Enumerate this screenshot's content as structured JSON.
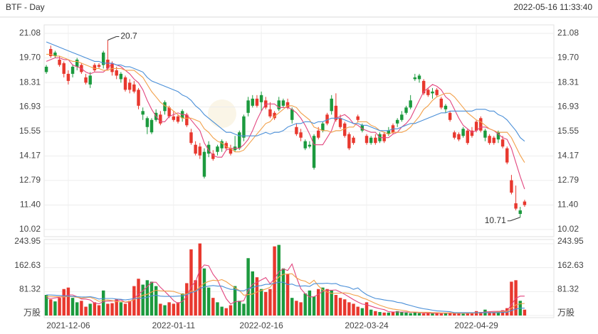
{
  "chart_data": {
    "type": "candlestick",
    "title": "BTF - Day",
    "timestamp": "2022-05-16 11:33:40",
    "categories": [
      null,
      null,
      null,
      null,
      null,
      "2021-12-06",
      null,
      null,
      null,
      null,
      null,
      null,
      null,
      null,
      null,
      null,
      null,
      null,
      null,
      null,
      null,
      null,
      null,
      null,
      null,
      null,
      null,
      null,
      null,
      "2022-01-11",
      null,
      null,
      null,
      null,
      null,
      null,
      null,
      null,
      null,
      null,
      null,
      null,
      null,
      null,
      null,
      null,
      null,
      null,
      null,
      "2022-02-16",
      null,
      null,
      null,
      null,
      null,
      null,
      null,
      null,
      null,
      null,
      null,
      null,
      null,
      null,
      null,
      null,
      null,
      null,
      null,
      null,
      null,
      null,
      null,
      "2022-03-24",
      null,
      null,
      null,
      null,
      null,
      null,
      null,
      null,
      null,
      null,
      null,
      null,
      null,
      null,
      null,
      null,
      null,
      null,
      null,
      null,
      null,
      null,
      null,
      null,
      "2022-04-29",
      null,
      null,
      null,
      null,
      null,
      null,
      null,
      null,
      null,
      null,
      null
    ],
    "open": [
      19.2,
      19.8,
      20.0,
      19.3,
      18.8,
      18.4,
      19.2,
      19.6,
      18.9,
      18.3,
      18.7,
      19.0,
      19.2,
      20.0,
      19.1,
      18.9,
      18.7,
      18.8,
      17.9,
      17.9,
      17.8,
      17.0,
      16.7,
      16.3,
      16.2,
      16.6,
      16.0,
      17.2,
      16.4,
      16.2,
      16.1,
      16.7,
      15.9,
      14.9,
      14.3,
      14.2,
      14.4,
      14.8,
      14.0,
      14.7,
      15.0,
      14.6,
      14.3,
      14.7,
      15.5,
      16.4,
      17.3,
      17.4,
      17.0,
      17.6,
      16.9,
      16.4,
      16.3,
      17.3,
      17.3,
      16.9,
      16.8,
      15.4,
      15.2,
      15.0,
      14.8,
      15.3,
      15.2,
      16.0,
      16.0,
      17.4,
      16.2,
      15.8,
      15.3,
      14.6,
      14.9,
      16.2,
      15.9,
      14.9,
      15.2,
      14.9,
      15.4,
      15.0,
      15.6,
      15.5,
      16.2,
      16.5,
      16.9,
      17.3,
      18.6,
      18.7,
      17.7,
      17.6,
      17.8,
      17.6,
      16.9,
      17.0,
      16.2,
      15.2,
      15.1,
      15.7,
      14.9,
      15.3,
      15.6,
      15.6,
      15.6,
      14.9,
      14.9,
      15.5,
      14.7,
      13.8,
      12.1,
      11.2,
      11.1,
      11.4
    ],
    "high": [
      19.3,
      20.39,
      20.1,
      19.8,
      19.5,
      19.0,
      19.3,
      19.7,
      19.4,
      18.8,
      18.9,
      19.4,
      19.4,
      20.1,
      20.7,
      19.5,
      19.2,
      18.9,
      18.7,
      18.5,
      18.4,
      18.0,
      16.9,
      16.4,
      16.3,
      16.8,
      16.7,
      17.3,
      17.0,
      16.7,
      16.5,
      16.8,
      16.6,
      15.7,
      15.0,
      14.9,
      14.6,
      15.0,
      14.5,
      14.8,
      15.1,
      15.0,
      14.8,
      15.3,
      15.6,
      16.5,
      17.5,
      17.6,
      17.6,
      17.8,
      17.5,
      17.2,
      16.7,
      17.5,
      17.4,
      17.4,
      16.9,
      16.0,
      15.7,
      15.1,
      15.0,
      15.4,
      15.8,
      16.1,
      16.6,
      17.6,
      17.7,
      16.5,
      16.1,
      15.5,
      15.3,
      16.5,
      16.0,
      15.4,
      15.3,
      15.4,
      15.5,
      15.5,
      15.8,
      16.0,
      16.3,
      16.7,
      17.0,
      17.6,
      18.8,
      18.8,
      18.5,
      18.0,
      18.0,
      18.0,
      17.5,
      17.1,
      16.7,
      15.6,
      15.5,
      15.8,
      15.7,
      15.8,
      16.2,
      16.4,
      15.7,
      15.4,
      15.3,
      15.6,
      15.3,
      14.7,
      13.1,
      12.5,
      11.3,
      11.7
    ],
    "low": [
      18.8,
      19.7,
      19.7,
      19.2,
      18.6,
      18.2,
      18.6,
      19.0,
      18.8,
      18.2,
      18.0,
      18.9,
      19.1,
      19.1,
      19.0,
      18.7,
      18.5,
      18.3,
      17.8,
      17.7,
      17.7,
      16.8,
      16.2,
      15.4,
      15.4,
      16.1,
      15.9,
      16.5,
      16.3,
      16.1,
      16.0,
      16.1,
      15.8,
      14.8,
      14.2,
      14.0,
      12.9,
      14.1,
      13.9,
      14.2,
      14.4,
      14.5,
      14.2,
      14.4,
      14.5,
      15.0,
      16.4,
      16.9,
      16.9,
      16.7,
      16.8,
      16.3,
      16.2,
      16.7,
      16.9,
      16.8,
      16.0,
      15.3,
      15.0,
      14.5,
      14.6,
      13.4,
      15.1,
      15.5,
      15.9,
      16.5,
      16.1,
      15.7,
      15.2,
      14.5,
      14.8,
      16.1,
      15.5,
      14.8,
      14.8,
      14.8,
      14.9,
      14.9,
      15.3,
      15.4,
      15.8,
      16.1,
      16.5,
      16.8,
      18.4,
      18.3,
      17.6,
      17.5,
      17.4,
      17.5,
      16.8,
      16.6,
      16.1,
      15.1,
      15.0,
      15.2,
      14.8,
      15.2,
      15.5,
      15.5,
      15.0,
      14.8,
      14.8,
      14.9,
      14.6,
      13.7,
      12.0,
      11.1,
      10.71,
      11.3
    ],
    "close": [
      18.9,
      20.2,
      19.8,
      19.6,
      19.4,
      18.8,
      18.8,
      19.2,
      19.3,
      18.6,
      18.2,
      19.3,
      19.3,
      19.3,
      19.6,
      19.4,
      19.0,
      18.5,
      18.6,
      18.3,
      18.2,
      17.9,
      16.5,
      15.8,
      15.5,
      16.2,
      16.5,
      16.7,
      16.9,
      16.4,
      16.4,
      16.3,
      16.5,
      15.5,
      14.8,
      14.7,
      13.0,
      14.3,
      14.3,
      14.4,
      14.6,
      14.9,
      14.6,
      14.5,
      14.6,
      15.2,
      16.6,
      17.0,
      17.4,
      17.2,
      17.3,
      16.8,
      16.6,
      16.8,
      17.0,
      17.2,
      16.2,
      15.8,
      15.5,
      14.6,
      14.7,
      13.5,
      15.6,
      15.6,
      16.5,
      16.7,
      17.0,
      16.3,
      16.0,
      15.4,
      15.2,
      16.4,
      15.6,
      15.3,
      14.9,
      15.2,
      15.0,
      15.4,
      15.4,
      15.9,
      16.0,
      16.2,
      16.6,
      16.9,
      18.5,
      18.5,
      18.4,
      17.9,
      17.7,
      17.9,
      17.4,
      16.8,
      16.6,
      15.5,
      15.4,
      15.3,
      15.6,
      15.6,
      16.1,
      16.3,
      15.2,
      15.3,
      15.2,
      15.1,
      15.1,
      14.6,
      12.8,
      11.5,
      10.9,
      11.6
    ],
    "up_color": "#e8382e",
    "down_color": "#1c9a3e",
    "ylim": [
      10.02,
      21.08
    ],
    "yticks": [
      21.08,
      {
        "value": 19.7,
        "label": "19.70"
      },
      18.31,
      16.93,
      15.55,
      14.17,
      12.79,
      {
        "value": 11.4,
        "label": "11.40"
      },
      10.02
    ],
    "grid": true,
    "ma_lines": [
      {
        "color": "#e2457f",
        "values": [
          19.5,
          19.6,
          19.7,
          19.7,
          19.6,
          19.6,
          19.3,
          19.2,
          19.1,
          18.9,
          18.8,
          18.9,
          18.9,
          18.9,
          19.1,
          19.4,
          19.3,
          19.2,
          19.0,
          18.8,
          18.5,
          18.3,
          17.9,
          17.3,
          16.8,
          16.4,
          16.1,
          16.1,
          16.4,
          16.5,
          16.6,
          16.5,
          16.5,
          16.2,
          15.9,
          15.6,
          14.9,
          14.5,
          14.2,
          14.1,
          14.1,
          14.5,
          14.6,
          14.6,
          14.6,
          14.8,
          15.1,
          15.6,
          16.2,
          16.7,
          17.1,
          17.1,
          17.1,
          16.9,
          16.9,
          16.9,
          16.8,
          16.6,
          16.3,
          15.9,
          15.4,
          14.8,
          14.8,
          14.8,
          15.2,
          15.6,
          16.3,
          16.4,
          16.5,
          16.3,
          16.0,
          15.9,
          15.7,
          15.6,
          15.5,
          15.5,
          15.2,
          15.2,
          15.2,
          15.4,
          15.5,
          15.8,
          16.0,
          16.3,
          16.8,
          17.3,
          17.8,
          18.0,
          18.2,
          18.1,
          17.9,
          17.5,
          17.3,
          16.8,
          16.3,
          15.9,
          15.7,
          15.5,
          15.6,
          15.8,
          15.8,
          15.7,
          15.6,
          15.4,
          15.2,
          15.1,
          14.6,
          13.8,
          13.0,
          12.3
        ]
      },
      {
        "color": "#f2a04a",
        "values": [
          19.9,
          19.9,
          19.8,
          19.8,
          19.7,
          19.6,
          19.5,
          19.5,
          19.4,
          19.3,
          19.2,
          19.1,
          19.1,
          19.0,
          19.0,
          19.1,
          19.1,
          19.1,
          19.0,
          19.0,
          19.0,
          18.8,
          18.6,
          18.2,
          17.8,
          17.5,
          17.2,
          17.0,
          16.9,
          16.7,
          16.5,
          16.3,
          16.3,
          16.3,
          16.2,
          16.1,
          15.7,
          15.5,
          15.2,
          15.0,
          14.9,
          14.7,
          14.6,
          14.4,
          14.4,
          14.5,
          14.8,
          15.1,
          15.4,
          15.7,
          16.0,
          16.1,
          16.4,
          16.6,
          16.8,
          17.0,
          17.0,
          16.9,
          16.6,
          16.4,
          16.2,
          15.8,
          15.7,
          15.6,
          15.6,
          15.5,
          15.6,
          15.6,
          15.7,
          15.8,
          15.8,
          16.1,
          16.1,
          16.1,
          15.9,
          15.8,
          15.6,
          15.5,
          15.4,
          15.5,
          15.5,
          15.5,
          15.6,
          15.8,
          16.1,
          16.4,
          16.8,
          17.0,
          17.3,
          17.5,
          17.6,
          17.7,
          17.7,
          17.5,
          17.2,
          16.9,
          16.6,
          16.4,
          16.2,
          16.1,
          15.9,
          15.7,
          15.6,
          15.5,
          15.5,
          15.5,
          15.2,
          14.7,
          14.2,
          13.8
        ]
      },
      {
        "color": "#4a8fd8",
        "values": [
          20.6,
          20.5,
          20.4,
          20.3,
          20.2,
          20.1,
          20.0,
          19.9,
          19.8,
          19.7,
          19.6,
          19.5,
          19.5,
          19.4,
          19.4,
          19.4,
          19.3,
          19.3,
          19.2,
          19.2,
          19.1,
          19.0,
          18.9,
          18.6,
          18.4,
          18.3,
          18.2,
          18.1,
          18.0,
          17.9,
          17.8,
          17.6,
          17.5,
          17.3,
          17.0,
          16.8,
          16.5,
          16.3,
          16.1,
          15.9,
          15.7,
          15.5,
          15.5,
          15.4,
          15.3,
          15.3,
          15.3,
          15.3,
          15.3,
          15.4,
          15.5,
          15.4,
          15.5,
          15.5,
          15.6,
          15.8,
          15.9,
          16.0,
          16.0,
          16.1,
          16.1,
          16.0,
          16.1,
          16.1,
          16.2,
          16.3,
          16.3,
          16.3,
          16.2,
          16.1,
          16.0,
          16.0,
          15.9,
          15.9,
          15.8,
          15.7,
          15.6,
          15.6,
          15.6,
          15.7,
          15.7,
          15.8,
          15.9,
          16.0,
          16.0,
          16.1,
          16.2,
          16.3,
          16.4,
          16.5,
          16.6,
          16.6,
          16.7,
          16.7,
          16.7,
          16.7,
          16.7,
          16.7,
          16.8,
          16.8,
          16.8,
          16.7,
          16.7,
          16.5,
          16.4,
          16.2,
          15.9,
          15.6,
          15.2,
          15.0
        ]
      }
    ],
    "volume": {
      "values": [
        70,
        55,
        48,
        60,
        90,
        95,
        60,
        45,
        50,
        30,
        40,
        45,
        35,
        85,
        40,
        42,
        55,
        45,
        40,
        50,
        100,
        125,
        105,
        120,
        115,
        100,
        40,
        35,
        45,
        40,
        45,
        75,
        110,
        225,
        120,
        245,
        160,
        95,
        60,
        45,
        30,
        25,
        35,
        100,
        50,
        40,
        195,
        150,
        130,
        90,
        80,
        90,
        235,
        240,
        160,
        140,
        60,
        50,
        45,
        75,
        85,
        65,
        90,
        95,
        90,
        85,
        70,
        60,
        55,
        45,
        40,
        30,
        25,
        45,
        20,
        15,
        12,
        10,
        10,
        12,
        15,
        12,
        10,
        8,
        10,
        8,
        7,
        8,
        9,
        8,
        7,
        8,
        10,
        8,
        7,
        6,
        8,
        10,
        15,
        12,
        20,
        10,
        12,
        15,
        18,
        25,
        115,
        120,
        50,
        20
      ],
      "ylim": [
        0,
        243.95
      ],
      "yticks": [
        {
          "value": 0,
          "label": "万股"
        },
        81.32,
        162.63,
        243.95
      ],
      "ma_lines": [
        {
          "color": "#e2457f",
          "values": [
            60,
            58,
            60,
            62,
            65,
            70,
            70,
            64,
            56,
            56,
            53,
            42,
            40,
            47,
            49,
            49,
            51,
            53,
            45,
            46,
            58,
            72,
            84,
            98,
            113,
            113,
            96,
            82,
            67,
            51,
            41,
            48,
            63,
            99,
            115,
            155,
            172,
            169,
            140,
            121,
            88,
            57,
            39,
            47,
            48,
            50,
            84,
            106,
            113,
            121,
            129,
            108,
            125,
            149,
            159,
            153,
            175,
            130,
            91,
            74,
            63,
            64,
            72,
            82,
            86,
            86,
            87,
            80,
            72,
            63,
            54,
            46,
            39,
            37,
            32,
            27,
            23,
            20,
            13,
            12,
            12,
            12,
            12,
            11,
            11,
            10,
            9,
            9,
            8,
            8,
            8,
            8,
            8,
            8,
            8,
            8,
            8,
            8,
            9,
            10,
            12,
            13,
            14,
            14,
            15,
            16,
            37,
            59,
            66,
            66
          ]
        },
        {
          "color": "#f2a04a",
          "values": [
            65,
            65,
            64,
            64,
            63,
            65,
            64,
            62,
            59,
            61,
            62,
            56,
            48,
            52,
            53,
            51,
            47,
            47,
            46,
            48,
            54,
            62,
            69,
            72,
            80,
            86,
            84,
            83,
            83,
            82,
            77,
            72,
            73,
            83,
            83,
            98,
            110,
            116,
            120,
            118,
            122,
            115,
            104,
            94,
            85,
            69,
            71,
            73,
            80,
            85,
            90,
            96,
            116,
            131,
            140,
            141,
            142,
            128,
            120,
            117,
            108,
            120,
            101,
            87,
            80,
            75,
            76,
            76,
            77,
            75,
            70,
            67,
            60,
            55,
            48,
            41,
            35,
            30,
            25,
            22,
            20,
            18,
            16,
            12,
            12,
            11,
            11,
            11,
            10,
            10,
            9,
            9,
            9,
            8,
            8,
            8,
            8,
            8,
            9,
            9,
            10,
            11,
            11,
            12,
            13,
            14,
            25,
            36,
            40,
            41
          ]
        },
        {
          "color": "#4a8fd8",
          "values": [
            70,
            70,
            69,
            68,
            67,
            66,
            65,
            64,
            63,
            63,
            64,
            61,
            56,
            58,
            58,
            58,
            56,
            55,
            53,
            55,
            58,
            59,
            59,
            62,
            67,
            69,
            66,
            65,
            65,
            65,
            66,
            67,
            71,
            78,
            82,
            92,
            97,
            100,
            102,
            100,
            100,
            94,
            89,
            89,
            84,
            84,
            91,
            95,
            100,
            102,
            106,
            106,
            110,
            113,
            113,
            105,
            107,
            101,
            100,
            101,
            99,
            108,
            109,
            109,
            110,
            108,
            109,
            102,
            99,
            96,
            89,
            94,
            81,
            71,
            64,
            58,
            56,
            53,
            51,
            49,
            45,
            43,
            38,
            34,
            30,
            26,
            23,
            21,
            18,
            16,
            15,
            14,
            13,
            10,
            10,
            10,
            10,
            10,
            10,
            10,
            10,
            10,
            10,
            10,
            11,
            11,
            17,
            22,
            25,
            25
          ]
        }
      ]
    }
  }
}
